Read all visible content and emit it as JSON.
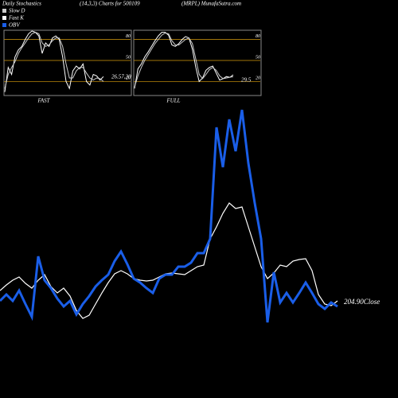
{
  "header": {
    "title": "Daily Stochastics",
    "subtitle": "(14,3,3) Charts for 500109",
    "source": "(MRPL) MunafaSutra.com"
  },
  "chart_data": [
    {
      "type": "line",
      "xlabel": "FAST",
      "annotation": "26.57,20",
      "x": [
        0,
        1,
        2,
        3,
        4,
        5,
        6,
        7,
        8,
        9,
        10,
        11,
        12,
        13,
        14,
        15,
        16,
        17,
        18,
        19,
        20,
        21,
        22,
        23,
        24,
        25,
        26,
        27,
        28,
        29
      ],
      "xlim": [
        0,
        29
      ],
      "ylim": [
        0,
        93
      ],
      "yticks": [
        80,
        50,
        20
      ],
      "grid_color": "#b8860b",
      "series": [
        {
          "name": "Fast K",
          "color": "#ffffff",
          "values": [
            5,
            40,
            30,
            55,
            65,
            70,
            80,
            88,
            92,
            90,
            85,
            60,
            75,
            70,
            82,
            85,
            80,
            55,
            20,
            10,
            35,
            42,
            38,
            45,
            20,
            15,
            30,
            28,
            22,
            27
          ]
        },
        {
          "name": "Slow D",
          "color": "#cccccc",
          "values": [
            10,
            30,
            40,
            48,
            60,
            68,
            75,
            82,
            88,
            90,
            88,
            75,
            70,
            72,
            78,
            82,
            82,
            70,
            45,
            25,
            25,
            35,
            40,
            40,
            32,
            25,
            22,
            25,
            24,
            20
          ]
        }
      ]
    },
    {
      "type": "line",
      "xlabel": "FULL",
      "annotation": "29.5",
      "x": [
        0,
        1,
        2,
        3,
        4,
        5,
        6,
        7,
        8,
        9,
        10,
        11,
        12,
        13,
        14,
        15,
        16,
        17,
        18,
        19,
        20,
        21,
        22,
        23,
        24,
        25,
        26,
        27,
        28,
        29
      ],
      "xlim": [
        0,
        29
      ],
      "ylim": [
        0,
        93
      ],
      "yticks": [
        80,
        50,
        20
      ],
      "grid_color": "#b8860b",
      "series": [
        {
          "color": "#ffffff",
          "values": [
            10,
            38,
            45,
            55,
            62,
            70,
            78,
            85,
            90,
            90,
            86,
            72,
            70,
            74,
            80,
            84,
            82,
            66,
            40,
            20,
            25,
            36,
            40,
            42,
            32,
            22,
            24,
            27,
            26,
            29.5
          ]
        },
        {
          "color": "#cccccc",
          "values": [
            12,
            28,
            40,
            50,
            58,
            66,
            74,
            80,
            86,
            89,
            88,
            78,
            72,
            72,
            76,
            80,
            82,
            74,
            52,
            30,
            24,
            30,
            37,
            40,
            36,
            28,
            24,
            25,
            26,
            27
          ]
        }
      ]
    },
    {
      "type": "line",
      "annotation": "204.90Close",
      "x": [
        0,
        1,
        2,
        3,
        4,
        5,
        6,
        7,
        8,
        9,
        10,
        11,
        12,
        13,
        14,
        15,
        16,
        17,
        18,
        19,
        20,
        21,
        22,
        23,
        24,
        25,
        26,
        27,
        28,
        29,
        30,
        31,
        32,
        33,
        34,
        35,
        36,
        37,
        38,
        39,
        40,
        41,
        42,
        43,
        44,
        45,
        46,
        47,
        48,
        49,
        50,
        51,
        52,
        53
      ],
      "xlim": [
        0,
        53
      ],
      "ylim": [
        0,
        500
      ],
      "series": [
        {
          "color": "#ffffff",
          "values": [
            135,
            142,
            148,
            152,
            144,
            138,
            148,
            155,
            140,
            132,
            138,
            128,
            110,
            100,
            104,
            118,
            132,
            145,
            156,
            160,
            156,
            150,
            148,
            147,
            148,
            152,
            156,
            157,
            156,
            155,
            160,
            165,
            167,
            200,
            215,
            232,
            245,
            238,
            240,
            215,
            190,
            165,
            150,
            157,
            167,
            165,
            172,
            174,
            175,
            160,
            130,
            118,
            116,
            122
          ]
        },
        {
          "name": "OBV",
          "color": "#1a5ee8",
          "values": [
            122,
            130,
            122,
            135,
            118,
            102,
            178,
            148,
            138,
            125,
            115,
            122,
            105,
            118,
            128,
            140,
            148,
            155,
            172,
            184,
            168,
            150,
            145,
            138,
            132,
            150,
            155,
            155,
            165,
            165,
            170,
            182,
            182,
            200,
            340,
            290,
            350,
            310,
            362,
            295,
            245,
            200,
            95,
            158,
            120,
            132,
            120,
            132,
            145,
            132,
            118,
            112,
            120,
            115
          ]
        }
      ]
    }
  ]
}
